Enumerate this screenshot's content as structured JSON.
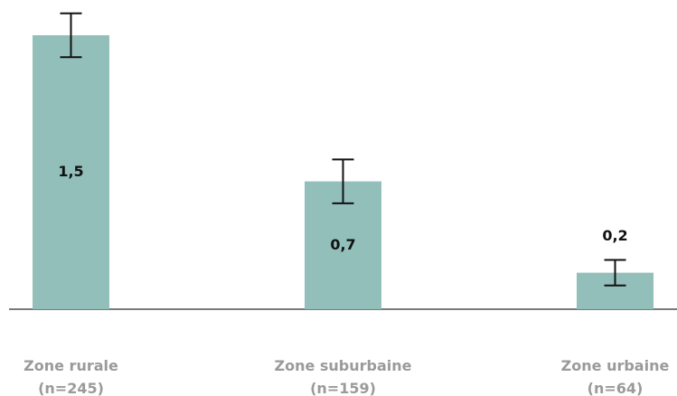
{
  "chart_data": {
    "type": "bar",
    "categories": [
      [
        "Zone rurale",
        "(n=245)"
      ],
      [
        "Zone suburbaine",
        "(n=159)"
      ],
      [
        "Zone urbaine",
        "(n=64)"
      ]
    ],
    "values": [
      1.5,
      0.7,
      0.2
    ],
    "value_labels": [
      "1,5",
      "0,7",
      "0,2"
    ],
    "errors": [
      0.12,
      0.12,
      0.07
    ],
    "color": "#93bfbb"
  }
}
